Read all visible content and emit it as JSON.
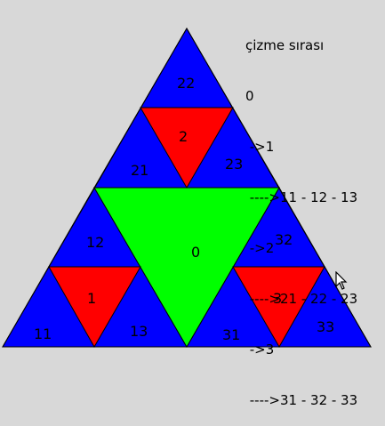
{
  "colors": {
    "background": "#d8d8d8",
    "outer": "#0000ff",
    "level0": "#00ff00",
    "level1": "#ff0000",
    "stroke": "#000000"
  },
  "triangles": {
    "t0": "0",
    "t1": "1",
    "t2": "2",
    "t3": "3",
    "t11": "11",
    "t12": "12",
    "t13": "13",
    "t21": "21",
    "t22": "22",
    "t23": "23",
    "t31": "31",
    "t32": "32",
    "t33": "33"
  },
  "order_legend": {
    "title": "çizme sırası",
    "lines": [
      "0",
      " ->1",
      " ---->11 - 12 - 13",
      " ->2",
      " ---->21 - 22 - 23",
      " ->3",
      " ---->31 - 32 - 33"
    ]
  }
}
